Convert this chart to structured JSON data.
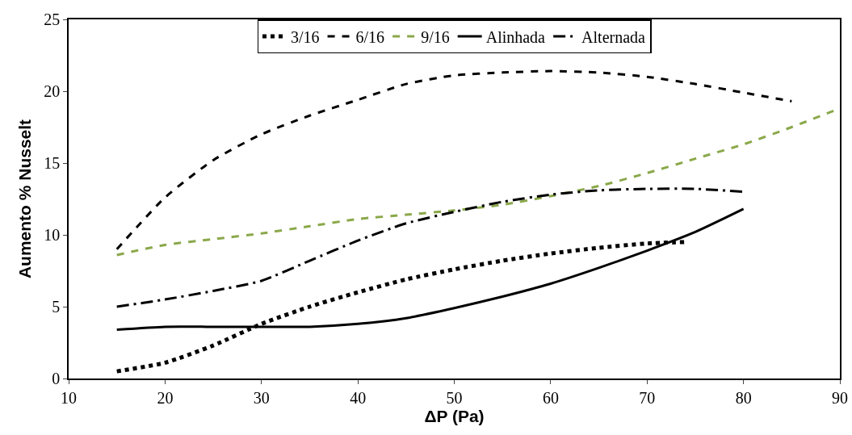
{
  "chart_data": {
    "type": "line",
    "xlabel": "ΔP (Pa)",
    "ylabel": "Aumento % Nusselt",
    "xlim": [
      10,
      90
    ],
    "xticks": [
      10,
      20,
      30,
      40,
      50,
      60,
      70,
      80,
      90
    ],
    "ylim": [
      0,
      25
    ],
    "yticks": [
      0,
      5,
      10,
      15,
      20,
      25
    ],
    "legend": "top",
    "marker": "none",
    "series": [
      {
        "name": "3/16",
        "color": "#000000",
        "line_style": "dotted",
        "x": [
          15,
          20,
          25,
          30,
          35,
          40,
          45,
          50,
          55,
          60,
          65,
          70,
          74
        ],
        "values": [
          0.5,
          1.1,
          2.3,
          3.8,
          5.0,
          6.0,
          6.9,
          7.6,
          8.2,
          8.7,
          9.1,
          9.4,
          9.5
        ]
      },
      {
        "name": "6/16",
        "color": "#000000",
        "line_style": "dashed",
        "x": [
          15,
          20,
          25,
          30,
          35,
          40,
          45,
          50,
          55,
          60,
          65,
          70,
          75,
          80,
          85
        ],
        "values": [
          9.0,
          12.6,
          15.2,
          17.0,
          18.3,
          19.4,
          20.5,
          21.1,
          21.3,
          21.4,
          21.3,
          21.0,
          20.5,
          19.9,
          19.3
        ]
      },
      {
        "name": "9/16",
        "color": "#8aa84a",
        "line_style": "dashed",
        "x": [
          15,
          20,
          25,
          30,
          35,
          40,
          45,
          50,
          55,
          60,
          65,
          70,
          75,
          80,
          85,
          90
        ],
        "values": [
          8.6,
          9.3,
          9.7,
          10.1,
          10.6,
          11.1,
          11.4,
          11.7,
          12.1,
          12.7,
          13.4,
          14.3,
          15.3,
          16.3,
          17.5,
          18.8
        ]
      },
      {
        "name": "Alinhada",
        "color": "#000000",
        "line_style": "solid",
        "x": [
          15,
          20,
          25,
          30,
          35,
          40,
          45,
          50,
          55,
          60,
          65,
          70,
          75,
          80
        ],
        "values": [
          3.4,
          3.6,
          3.6,
          3.6,
          3.6,
          3.8,
          4.2,
          4.9,
          5.7,
          6.6,
          7.7,
          8.9,
          10.2,
          11.8
        ]
      },
      {
        "name": "Alternada",
        "color": "#000000",
        "line_style": "dashdot",
        "x": [
          15,
          20,
          25,
          30,
          35,
          40,
          45,
          50,
          55,
          60,
          65,
          70,
          75,
          80
        ],
        "values": [
          5.0,
          5.5,
          6.1,
          6.8,
          8.2,
          9.6,
          10.8,
          11.6,
          12.3,
          12.8,
          13.1,
          13.2,
          13.2,
          13.0
        ]
      }
    ]
  }
}
